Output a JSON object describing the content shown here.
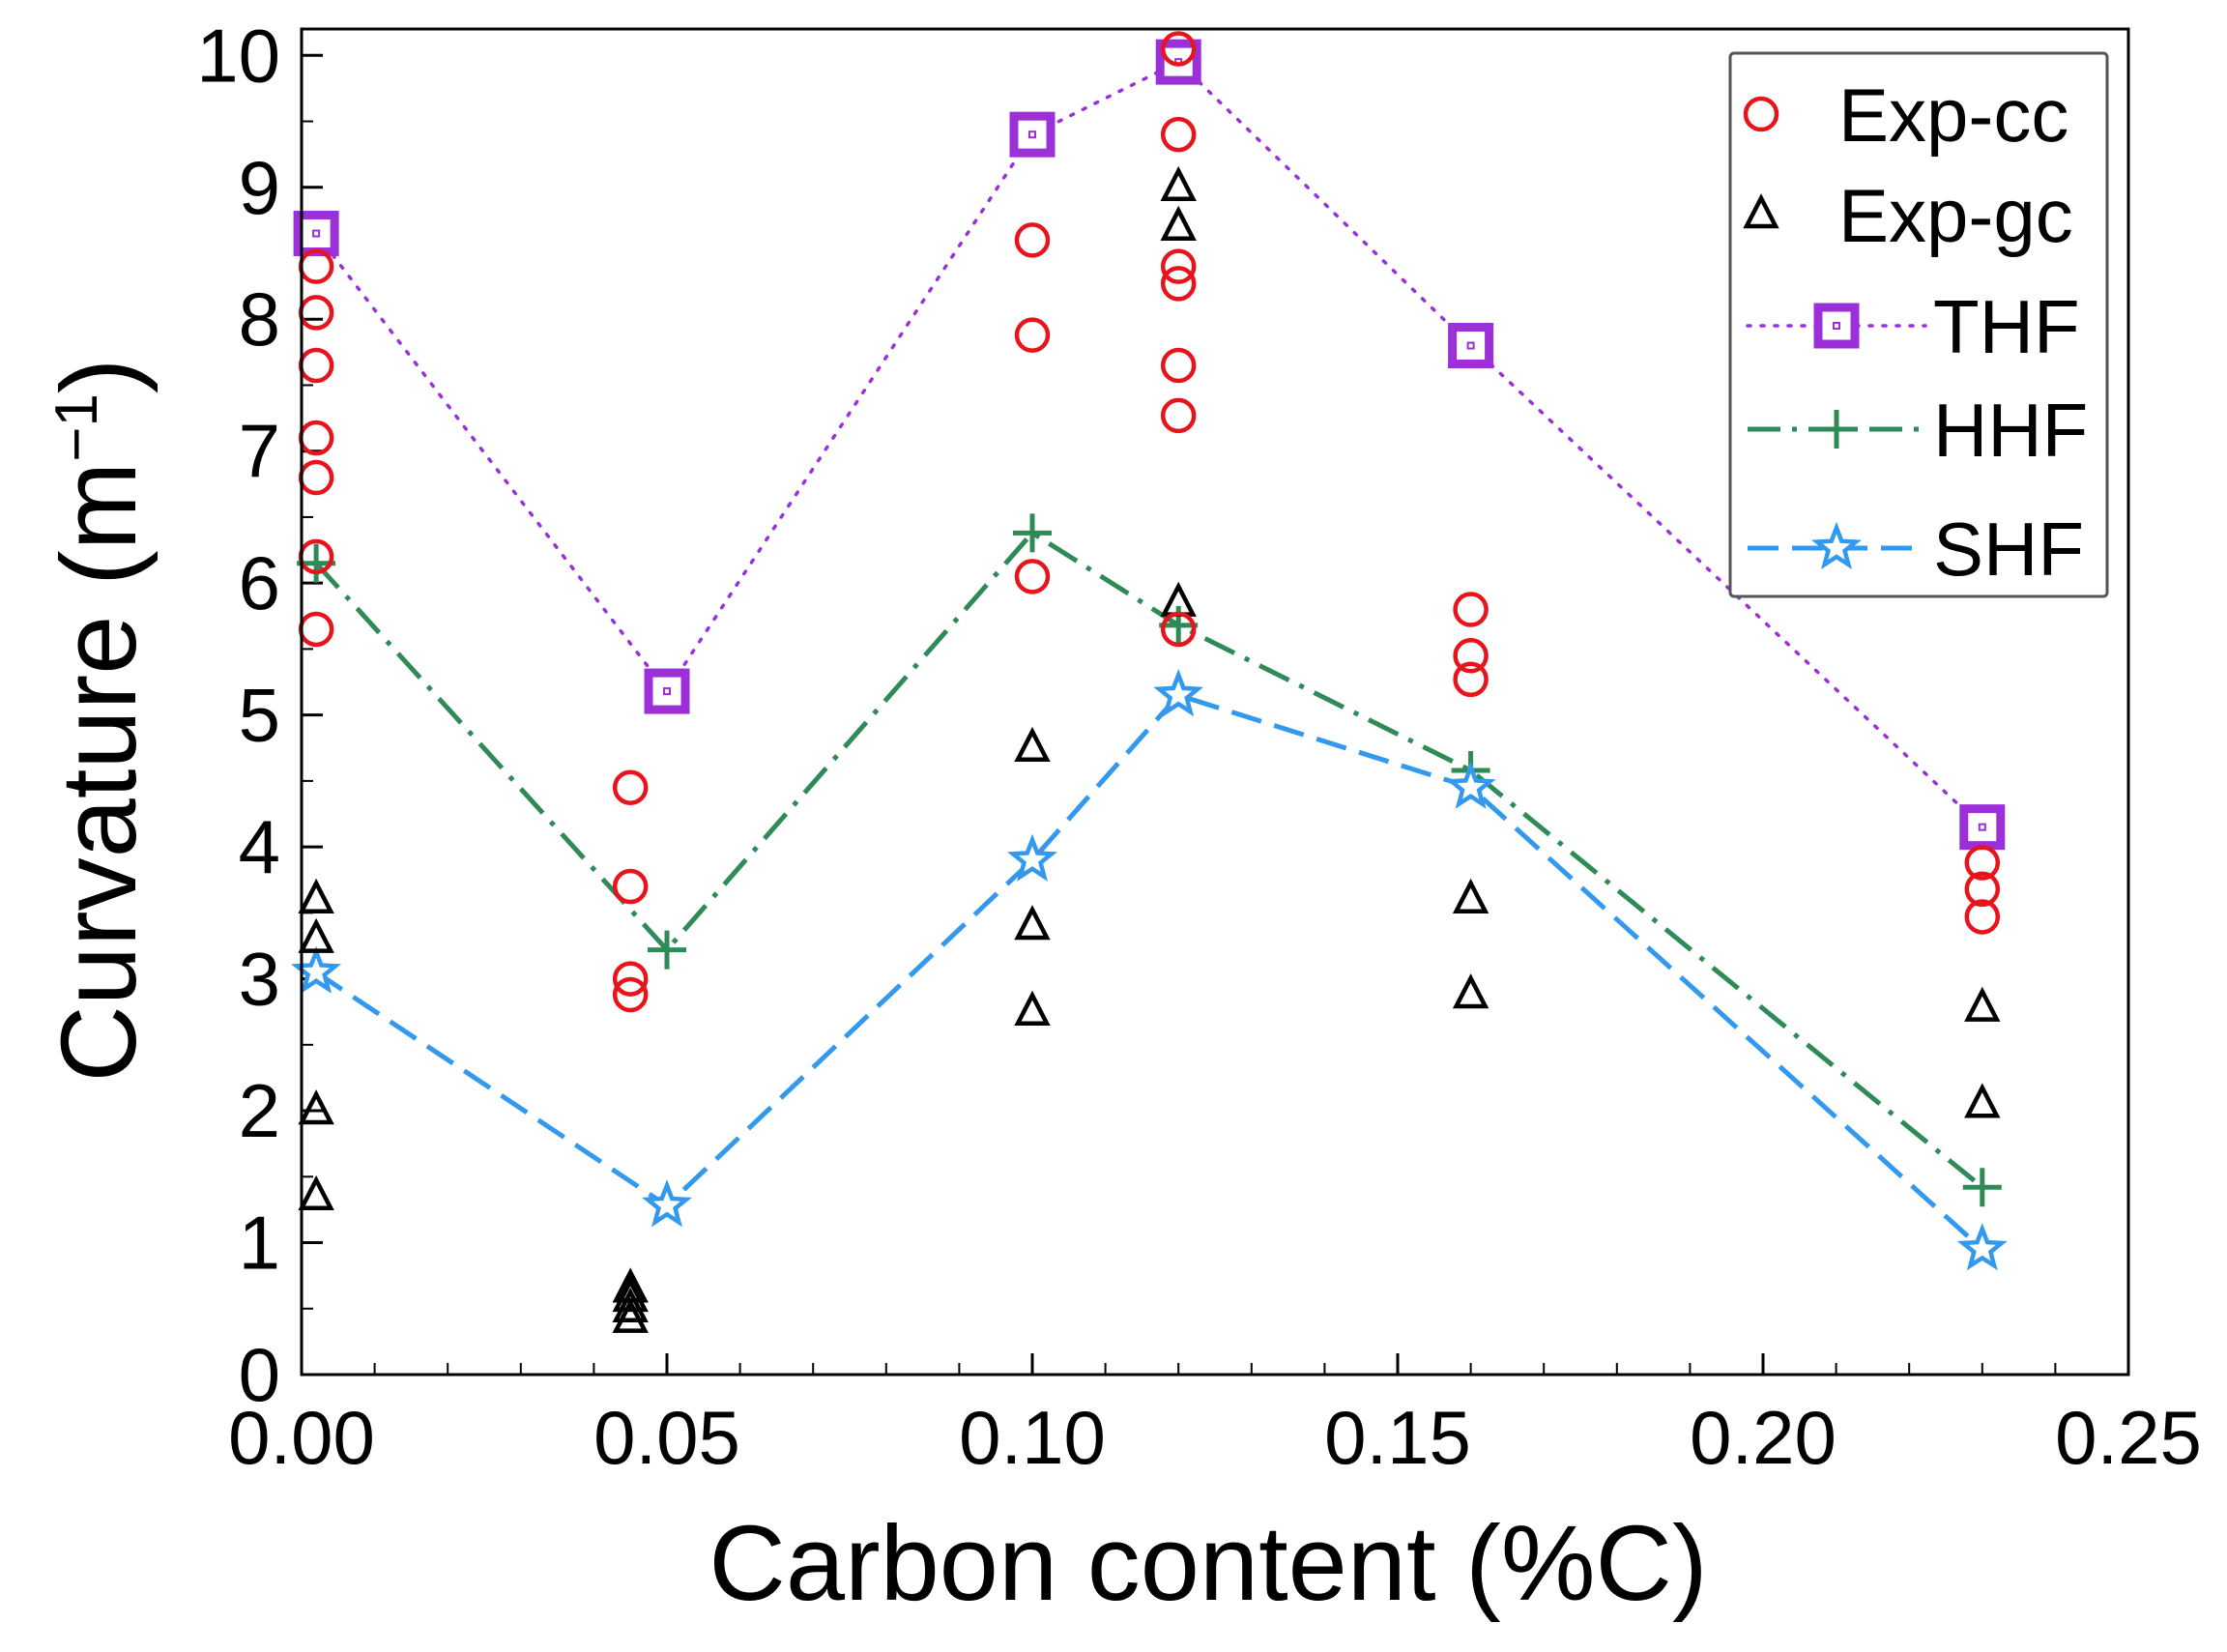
{
  "chart_data": {
    "type": "scatter",
    "xlabel": "Carbon content (%C)",
    "ylabel": "Curvature (m",
    "ylabel_superscript": "−1",
    "ylabel_close": ")",
    "xlim": [
      0,
      0.25
    ],
    "ylim": [
      0,
      10.2
    ],
    "x_ticks": [
      0,
      0.05,
      0.1,
      0.15,
      0.2,
      0.25
    ],
    "x_tick_labels": [
      "0.00",
      "0.05",
      "0.10",
      "0.15",
      "0.20",
      "0.25"
    ],
    "x_minor_step": 0.01,
    "y_ticks": [
      0,
      1,
      2,
      3,
      4,
      5,
      6,
      7,
      8,
      9,
      10
    ],
    "y_tick_labels": [
      "0",
      "1",
      "2",
      "3",
      "4",
      "5",
      "6",
      "7",
      "8",
      "9",
      "10"
    ],
    "y_minor_step": 0.5,
    "legend_position": "top-right",
    "series": [
      {
        "name": "Exp-cc",
        "marker": "circle",
        "color": "#e8141b",
        "line": "none",
        "x": [
          0.002,
          0.002,
          0.002,
          0.002,
          0.002,
          0.002,
          0.002,
          0.045,
          0.045,
          0.045,
          0.045,
          0.1,
          0.1,
          0.1,
          0.12,
          0.12,
          0.12,
          0.12,
          0.12,
          0.12,
          0.12,
          0.16,
          0.16,
          0.16,
          0.23,
          0.23,
          0.23
        ],
        "y": [
          8.4,
          8.05,
          7.65,
          7.1,
          6.8,
          6.2,
          5.65,
          4.45,
          3.7,
          3.0,
          2.88,
          8.6,
          7.88,
          6.05,
          10.05,
          9.4,
          8.4,
          8.27,
          7.65,
          7.27,
          5.65,
          5.8,
          5.45,
          5.27,
          3.88,
          3.68,
          3.47
        ]
      },
      {
        "name": "Exp-gc",
        "marker": "triangle",
        "color": "#000000",
        "line": "none",
        "x": [
          0.002,
          0.002,
          0.002,
          0.002,
          0.045,
          0.045,
          0.045,
          0.045,
          0.1,
          0.1,
          0.1,
          0.12,
          0.12,
          0.12,
          0.16,
          0.16,
          0.23,
          0.23
        ],
        "y": [
          3.6,
          3.3,
          2.0,
          1.35,
          0.65,
          0.58,
          0.5,
          0.42,
          4.75,
          3.4,
          2.75,
          9.0,
          8.7,
          5.85,
          3.6,
          2.88,
          2.78,
          2.05
        ]
      },
      {
        "name": "THF",
        "marker": "square",
        "color": "#9b30d9",
        "line": "dotted",
        "x": [
          0.002,
          0.05,
          0.1,
          0.12,
          0.16,
          0.23
        ],
        "y": [
          8.65,
          5.18,
          9.4,
          9.95,
          7.8,
          4.15
        ]
      },
      {
        "name": "HHF",
        "marker": "plus",
        "color": "#2e8b57",
        "line": "dashdot",
        "x": [
          0.002,
          0.05,
          0.1,
          0.12,
          0.16,
          0.23
        ],
        "y": [
          6.15,
          3.22,
          6.38,
          5.68,
          4.58,
          1.42
        ]
      },
      {
        "name": "SHF",
        "marker": "star",
        "color": "#3399ee",
        "line": "dashed",
        "x": [
          0.002,
          0.05,
          0.1,
          0.12,
          0.16,
          0.23
        ],
        "y": [
          3.05,
          1.28,
          3.9,
          5.15,
          4.45,
          0.95
        ]
      }
    ]
  }
}
